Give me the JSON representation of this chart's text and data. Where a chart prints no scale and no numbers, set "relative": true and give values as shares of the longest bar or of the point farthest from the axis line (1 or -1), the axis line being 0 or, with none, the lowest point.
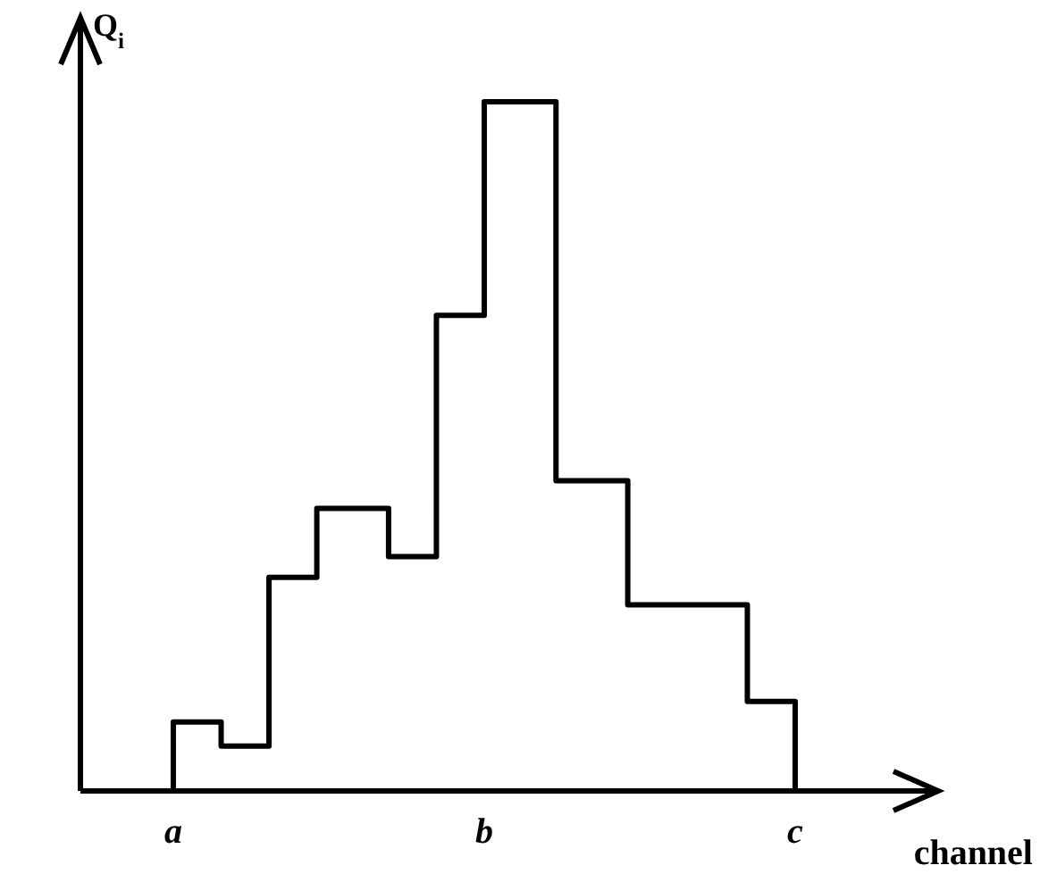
{
  "chart_data": {
    "type": "step",
    "relative": true,
    "xlabel": "channel",
    "ylabel": "Q$_{i}$",
    "categories": [
      null,
      "a",
      null,
      null,
      null,
      null,
      null,
      null,
      null,
      null,
      null,
      null,
      null,
      null,
      "b",
      null,
      null,
      null,
      null,
      null,
      null,
      null,
      null,
      null,
      null,
      null,
      null,
      "c"
    ],
    "values": [
      0,
      0.1,
      0.1,
      0.065,
      0.065,
      0.31,
      0.31,
      0.41,
      0.41,
      0.41,
      0.34,
      0.34,
      0.69,
      0.69,
      1,
      1,
      1,
      0.45,
      0.45,
      0.45,
      0.27,
      0.27,
      0.27,
      0.27,
      0.27,
      0.13,
      0.13,
      0
    ],
    "color": "#000000",
    "grid": false,
    "legend": false
  }
}
